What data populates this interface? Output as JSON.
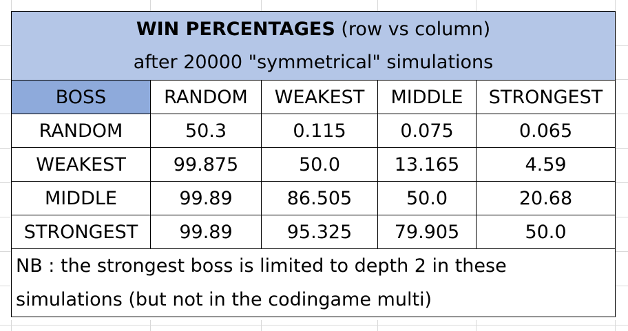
{
  "title": {
    "bold": "WIN PERCENTAGES",
    "rest": " (row vs column)",
    "subtitle": "after 20000 \"symmetrical\" simulations"
  },
  "table": {
    "corner": "BOSS",
    "columns": [
      "RANDOM",
      "WEAKEST",
      "MIDDLE",
      "STRONGEST"
    ],
    "rows": [
      {
        "label": "RANDOM",
        "values": [
          "50.3",
          "0.115",
          "0.075",
          "0.065"
        ]
      },
      {
        "label": "WEAKEST",
        "values": [
          "99.875",
          "50.0",
          "13.165",
          "4.59"
        ]
      },
      {
        "label": "MIDDLE",
        "values": [
          "99.89",
          "86.505",
          "50.0",
          "20.68"
        ]
      },
      {
        "label": "STRONGEST",
        "values": [
          "99.89",
          "95.325",
          "79.905",
          "50.0"
        ]
      }
    ]
  },
  "note": {
    "line1": "NB : the strongest boss is limited to depth 2 in these",
    "line2": "simulations (but not in the codingame multi)"
  },
  "colors": {
    "title_bg": "#b4c6e7",
    "corner_bg": "#8eaadb",
    "gridline": "#d9d9d9"
  }
}
